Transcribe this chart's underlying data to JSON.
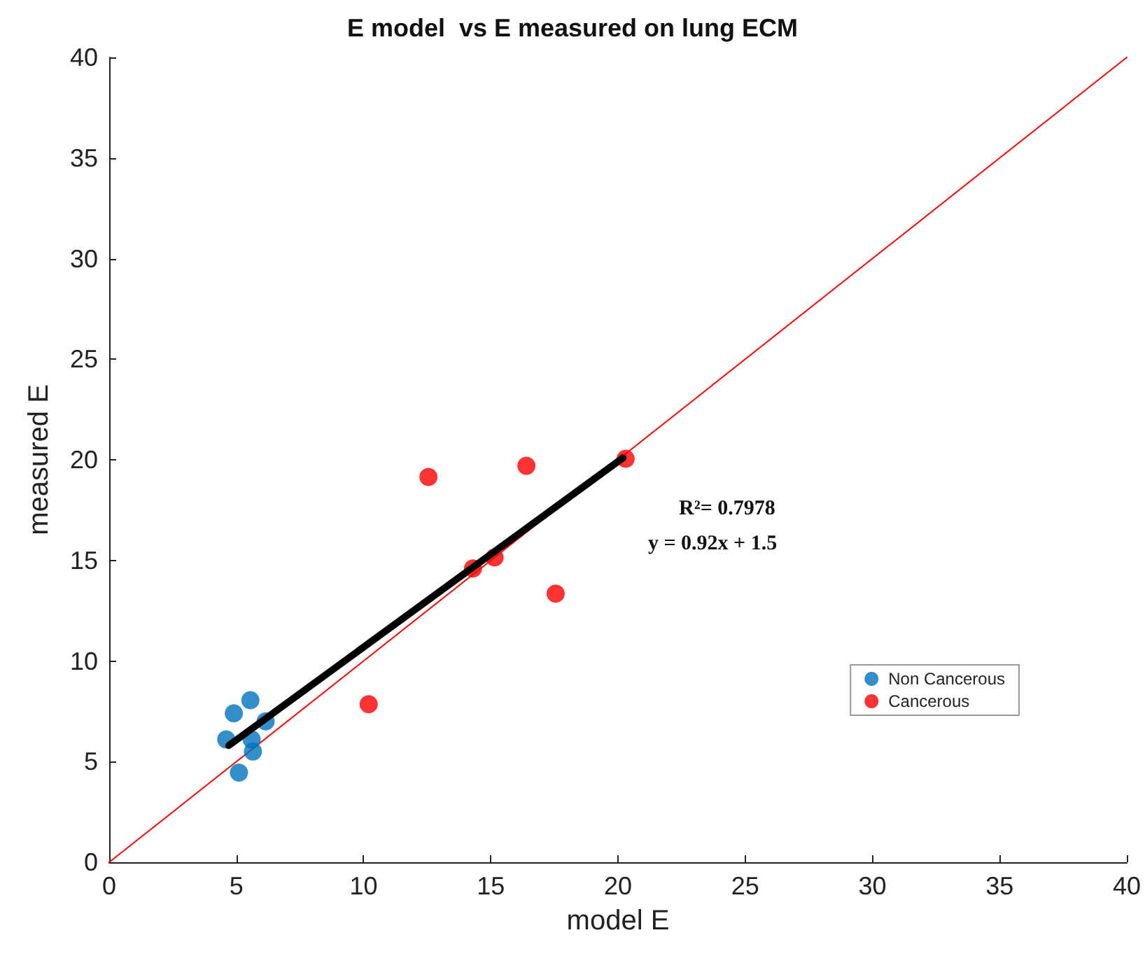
{
  "chart_data": {
    "type": "scatter",
    "title": "E model  vs E measured on lung ECM",
    "xlabel": "model E",
    "ylabel": "measured E",
    "xlim": [
      0,
      40
    ],
    "ylim": [
      0,
      40
    ],
    "xticks": [
      0,
      5,
      10,
      15,
      20,
      25,
      30,
      35,
      40
    ],
    "yticks": [
      0,
      5,
      10,
      15,
      20,
      25,
      30,
      35,
      40
    ],
    "grid": false,
    "legend": "right",
    "marker": "circle",
    "annotations": [
      "R²= 0.7978",
      "y = 0.92x + 1.5"
    ],
    "series": [
      {
        "name": "Non Cancerous",
        "color": "#0072bd",
        "x": [
          4.6,
          4.9,
          5.1,
          5.55,
          5.6,
          5.65,
          6.15
        ],
        "values": [
          6.1,
          7.4,
          4.45,
          8.05,
          6.1,
          5.5,
          7.0
        ]
      },
      {
        "name": "Cancerous",
        "color": "#ff0000",
        "x": [
          10.2,
          12.55,
          14.3,
          15.15,
          16.4,
          17.55,
          20.3
        ],
        "values": [
          7.85,
          19.15,
          14.6,
          15.15,
          19.7,
          13.35,
          20.05
        ]
      },
      {
        "type": "line",
        "color": "#ff0000",
        "marker": "none",
        "x": [
          0,
          40
        ],
        "values": [
          0,
          40
        ]
      },
      {
        "type": "line",
        "color": "#000000",
        "marker": "none",
        "x": [
          4.7,
          20.2
        ],
        "values": [
          5.8,
          20.1
        ]
      }
    ]
  }
}
